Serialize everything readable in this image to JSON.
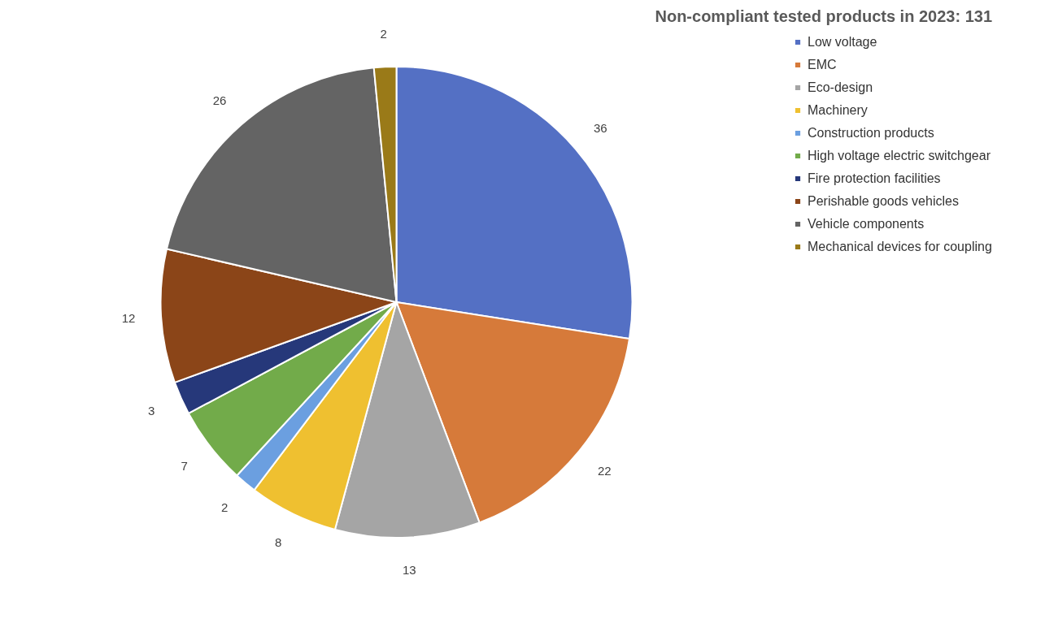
{
  "chart_data": {
    "type": "pie",
    "title": "Non-compliant tested products in 2023: 131",
    "categories": [
      "Low voltage",
      "EMC",
      "Eco-design",
      "Machinery",
      "Construction products",
      "High voltage electric switchgear",
      "Fire protection facilities",
      "Perishable goods vehicles",
      "Vehicle components",
      "Mechanical devices for coupling"
    ],
    "values": [
      36,
      22,
      13,
      8,
      2,
      7,
      3,
      12,
      26,
      2
    ],
    "colors": [
      "#5470c4",
      "#d67a3a",
      "#a5a5a5",
      "#efc030",
      "#6b9fe0",
      "#72ab4a",
      "#26387a",
      "#8b4518",
      "#646464",
      "#9a7a18"
    ],
    "data_labels": true,
    "legend": "right"
  }
}
